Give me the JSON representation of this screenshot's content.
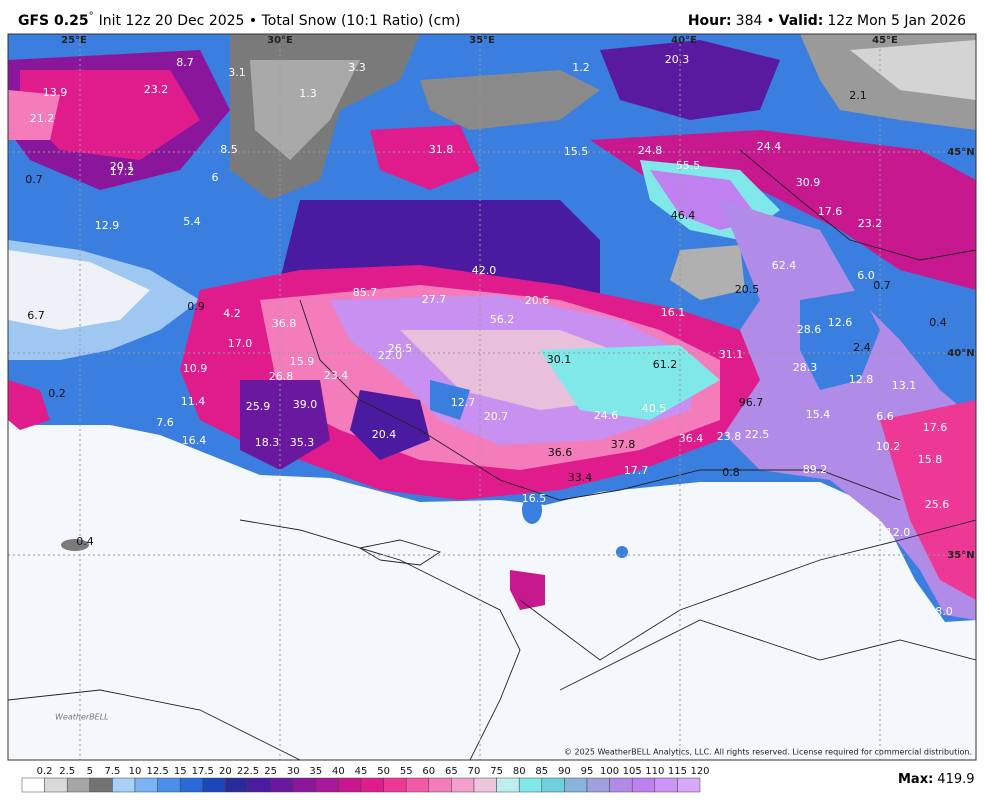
{
  "header": {
    "model": "GFS 0.25",
    "degree": "°",
    "description": "Init 12z 20 Dec 2025 • Total Snow (10:1 Ratio) (cm)",
    "hour_label": "Hour:",
    "hour": "384",
    "separator": "•",
    "valid_label": "Valid:",
    "valid": "12z Mon 5 Jan 2026"
  },
  "grid_labels": [
    "25°E",
    "30°E",
    "35°E",
    "40°E",
    "45°E",
    "45°N",
    "40°N",
    "35°N"
  ],
  "map_labels": [
    "13.9",
    "21.2",
    "23.2",
    "8.7",
    "3.1",
    "3.3",
    "1.3",
    "1.2",
    "20.3",
    "8.5",
    "0.7",
    "20.1",
    "17.2",
    "6",
    "31.8",
    "15.5",
    "24.8",
    "55.5",
    "24.4",
    "2.1",
    "30.9",
    "17.6",
    "23.2",
    "12.9",
    "5.4",
    "46.4",
    "62.4",
    "6.0",
    "0.7",
    "42.0",
    "85.7",
    "27.7",
    "20.6",
    "20.5",
    "0.9",
    "4.2",
    "6.7",
    "36.8",
    "56.2",
    "16.1",
    "28.6",
    "12.6",
    "0.4",
    "17.0",
    "26.5",
    "22.0",
    "15.9",
    "30.1",
    "61.2",
    "31.1",
    "2.4",
    "10.9",
    "26.8",
    "23.4",
    "28.3",
    "12.8",
    "13.1",
    "0.2",
    "11.4",
    "39.0",
    "12.7",
    "40.5",
    "96.7",
    "25.9",
    "20.7",
    "24.6",
    "15.4",
    "6.6",
    "7.6",
    "16.4",
    "18.3",
    "35.3",
    "20.4",
    "37.8",
    "36.4",
    "23.8",
    "22.5",
    "10.2",
    "17.6",
    "36.6",
    "15.8",
    "17.7",
    "0.8",
    "89.2",
    "33.4",
    "16.5",
    "25.6",
    "12.0",
    "0.4",
    "8.0"
  ],
  "logo": "WeatherBELL",
  "copyright": "© 2025 WeatherBELL Analytics, LLC. All rights reserved. License required for commercial distribution.",
  "colorbar": {
    "ticks": [
      0.2,
      2.5,
      5,
      7.5,
      10,
      12.5,
      15,
      17.5,
      20,
      22.5,
      25,
      30,
      35,
      40,
      45,
      50,
      55,
      60,
      65,
      70,
      75,
      80,
      85,
      90,
      95,
      100,
      105,
      110,
      115,
      120
    ],
    "colors": [
      "#ffffff",
      "#d9d9d9",
      "#a6a6a6",
      "#737373",
      "#a8d0f8",
      "#7ab4f2",
      "#4a90e8",
      "#2a6ad8",
      "#1a48b8",
      "#2a2a9a",
      "#4a1aa0",
      "#6a18a0",
      "#8a169c",
      "#a81898",
      "#c81890",
      "#e01c8c",
      "#ee3896",
      "#f25aa8",
      "#f47cba",
      "#f4a0cc",
      "#ecc4dc",
      "#c0eeee",
      "#80e8e8",
      "#70d0dc",
      "#88b4dc",
      "#9ea0e0",
      "#b08ce8",
      "#c080f0",
      "#cc94f4",
      "#d8a8f8"
    ]
  },
  "max_label": "Max:",
  "max_value": "419.9"
}
